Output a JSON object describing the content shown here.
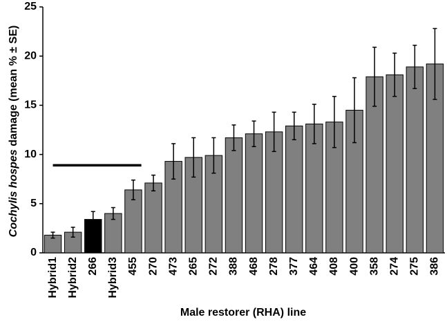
{
  "chart_data": {
    "type": "bar",
    "ylabel_italic": "Cochylis hospes",
    "ylabel_rest": " damage (mean % ± SE)",
    "xlabel": "Male restorer (RHA) line",
    "categories": [
      "Hybrid1",
      "Hybrid2",
      "266",
      "Hybrid3",
      "455",
      "270",
      "473",
      "265",
      "272",
      "388",
      "468",
      "278",
      "377",
      "464",
      "408",
      "400",
      "358",
      "274",
      "275",
      "386"
    ],
    "values": [
      1.8,
      2.1,
      3.4,
      4.0,
      6.4,
      7.1,
      9.3,
      9.7,
      9.9,
      11.7,
      12.1,
      12.3,
      12.9,
      13.1,
      13.3,
      14.5,
      17.9,
      18.1,
      18.9,
      19.2
    ],
    "errors": [
      0.3,
      0.5,
      0.8,
      0.6,
      1.0,
      0.8,
      1.8,
      2.0,
      1.8,
      1.3,
      1.3,
      2.0,
      1.4,
      2.0,
      2.6,
      3.3,
      3.0,
      2.2,
      2.2,
      3.6
    ],
    "colors": [
      "#808080",
      "#808080",
      "#000000",
      "#808080",
      "#808080",
      "#808080",
      "#808080",
      "#808080",
      "#808080",
      "#808080",
      "#808080",
      "#808080",
      "#808080",
      "#808080",
      "#808080",
      "#808080",
      "#808080",
      "#808080",
      "#808080",
      "#808080"
    ],
    "reference_line": 8.9,
    "ylim": [
      0,
      25
    ],
    "yticks": [
      0,
      5,
      10,
      15,
      20,
      25
    ],
    "grid": false
  }
}
